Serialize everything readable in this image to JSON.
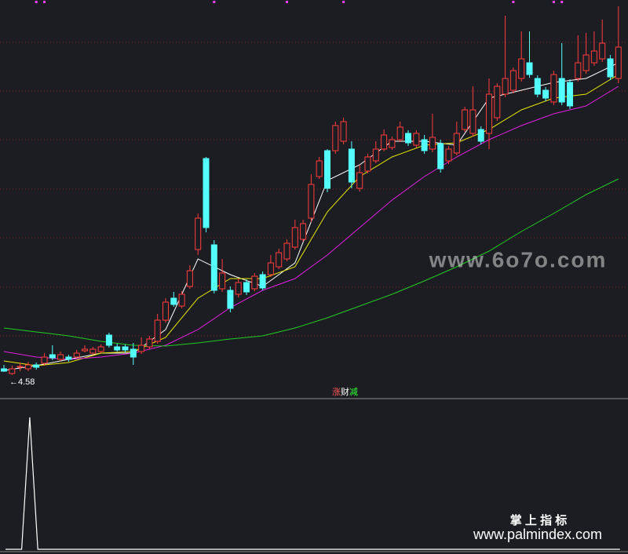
{
  "chart_data": {
    "type": "candlestick",
    "ylim": [
      4.31,
      9.36
    ],
    "yticks": [
      5.08,
      5.7,
      6.33,
      6.95,
      7.58,
      8.2,
      8.82
    ],
    "grid": true,
    "grid_color": "#7a1e1e",
    "up_color": "#ff3c3c",
    "down_color": "#54ffff",
    "candles": {
      "open": [
        4.66,
        4.6,
        4.68,
        4.66,
        4.71,
        4.73,
        4.84,
        4.78,
        4.81,
        4.81,
        4.89,
        4.86,
        4.88,
        5.09,
        4.94,
        4.94,
        4.91,
        4.88,
        4.94,
        5.01,
        5.28,
        5.56,
        5.46,
        5.71,
        6.18,
        7.34,
        6.24,
        5.68,
        5.66,
        5.61,
        5.76,
        5.68,
        5.86,
        5.86,
        5.96,
        6.06,
        6.21,
        6.31,
        6.58,
        7.11,
        7.44,
        7.44,
        7.56,
        7.46,
        6.96,
        7.18,
        7.31,
        7.46,
        7.48,
        7.58,
        7.66,
        7.51,
        7.58,
        7.46,
        7.53,
        7.31,
        7.41,
        7.71,
        7.66,
        7.71,
        7.66,
        7.86,
        8.16,
        8.21,
        8.36,
        8.56,
        8.36,
        8.21,
        8.06,
        8.36,
        8.31,
        8.36,
        8.46,
        8.56,
        8.61,
        8.61,
        8.36
      ],
      "high": [
        4.71,
        4.7,
        4.74,
        4.75,
        4.74,
        4.86,
        4.96,
        4.88,
        4.84,
        4.9,
        4.96,
        4.94,
        4.97,
        5.12,
        4.98,
        4.97,
        4.99,
        5.06,
        5.08,
        5.36,
        5.56,
        5.64,
        5.65,
        5.98,
        6.64,
        7.36,
        6.3,
        6.06,
        5.71,
        5.81,
        5.8,
        5.88,
        5.9,
        6.11,
        6.19,
        6.31,
        6.56,
        6.56,
        7.14,
        7.36,
        7.46,
        7.81,
        7.86,
        7.56,
        7.26,
        7.4,
        7.56,
        7.71,
        7.62,
        7.81,
        7.7,
        7.7,
        7.64,
        7.91,
        7.58,
        7.5,
        7.81,
        8.0,
        8.26,
        7.75,
        8.36,
        8.3,
        9.16,
        8.5,
        8.96,
        8.96,
        8.4,
        8.25,
        8.46,
        8.81,
        8.35,
        8.91,
        8.94,
        8.96,
        9.11,
        8.66,
        9.28
      ],
      "low": [
        4.62,
        4.58,
        4.63,
        4.63,
        4.65,
        4.7,
        4.77,
        4.76,
        4.75,
        4.79,
        4.87,
        4.84,
        4.86,
        4.93,
        4.88,
        4.87,
        4.71,
        4.85,
        4.91,
        4.98,
        5.25,
        5.45,
        5.43,
        5.68,
        6.11,
        6.4,
        5.62,
        5.64,
        5.38,
        5.57,
        5.6,
        5.65,
        5.66,
        5.83,
        5.93,
        6.03,
        6.18,
        6.28,
        6.53,
        7.08,
        6.91,
        7.4,
        7.52,
        6.96,
        6.92,
        7.15,
        7.28,
        7.43,
        7.45,
        7.55,
        7.5,
        7.48,
        7.4,
        7.42,
        7.16,
        7.27,
        7.38,
        7.68,
        7.62,
        7.52,
        7.46,
        7.82,
        8.12,
        8.17,
        8.32,
        8.37,
        8.12,
        8.07,
        8.02,
        8.02,
        7.97,
        8.32,
        8.42,
        8.52,
        8.57,
        8.34,
        8.3
      ],
      "close": [
        4.63,
        4.66,
        4.69,
        4.71,
        4.68,
        4.81,
        4.8,
        4.84,
        4.78,
        4.86,
        4.91,
        4.91,
        4.94,
        4.96,
        4.9,
        4.9,
        4.81,
        4.96,
        5.04,
        5.28,
        5.51,
        5.48,
        5.61,
        5.91,
        6.58,
        6.46,
        5.66,
        5.88,
        5.43,
        5.76,
        5.64,
        5.84,
        5.69,
        6.01,
        6.14,
        6.26,
        6.46,
        6.51,
        7.01,
        7.31,
        6.96,
        7.76,
        7.81,
        7.04,
        7.16,
        7.36,
        7.46,
        7.64,
        7.58,
        7.74,
        7.54,
        7.66,
        7.44,
        7.61,
        7.21,
        7.46,
        7.66,
        7.96,
        7.96,
        7.56,
        8.16,
        8.26,
        8.36,
        8.46,
        8.61,
        8.41,
        8.16,
        8.11,
        8.41,
        8.06,
        8.01,
        8.56,
        8.66,
        8.71,
        8.81,
        8.38,
        8.76
      ]
    },
    "lines": [
      {
        "color": "#ffffff",
        "x": [
          0,
          4,
          8,
          12,
          16,
          20,
          24,
          28,
          32,
          36,
          40,
          44,
          48,
          52,
          56,
          60,
          64,
          68,
          72,
          76
        ],
        "values": [
          4.64,
          4.7,
          4.78,
          4.86,
          4.86,
          5.16,
          6.06,
          5.86,
          5.71,
          6.01,
          7.06,
          7.26,
          7.56,
          7.56,
          7.51,
          8.11,
          8.21,
          8.31,
          8.36,
          8.56
        ]
      },
      {
        "color": "#e8e800",
        "x": [
          0,
          4,
          8,
          12,
          16,
          20,
          24,
          28,
          32,
          36,
          40,
          44,
          48,
          52,
          56,
          60,
          64,
          68,
          72,
          76
        ],
        "values": [
          4.76,
          4.7,
          4.74,
          4.86,
          4.88,
          5.06,
          5.56,
          5.81,
          5.81,
          5.96,
          6.66,
          7.11,
          7.36,
          7.51,
          7.54,
          7.71,
          7.96,
          8.11,
          8.16,
          8.41
        ]
      },
      {
        "color": "#e020e0",
        "x": [
          0,
          4,
          8,
          12,
          16,
          20,
          24,
          28,
          32,
          36,
          40,
          44,
          48,
          52,
          56,
          60,
          64,
          68,
          72,
          76
        ],
        "values": [
          4.88,
          4.81,
          4.78,
          4.81,
          4.86,
          4.96,
          5.16,
          5.44,
          5.66,
          5.81,
          6.11,
          6.46,
          6.81,
          7.11,
          7.36,
          7.58,
          7.76,
          7.91,
          8.01,
          8.26
        ]
      },
      {
        "color": "#22cc22",
        "x": [
          0,
          4,
          8,
          12,
          16,
          20,
          24,
          28,
          32,
          36,
          40,
          44,
          48,
          52,
          56,
          60,
          64,
          68,
          72,
          76
        ],
        "values": [
          5.18,
          5.13,
          5.08,
          5.01,
          4.96,
          4.95,
          4.99,
          5.04,
          5.08,
          5.18,
          5.31,
          5.46,
          5.61,
          5.78,
          5.96,
          6.16,
          6.41,
          6.64,
          6.88,
          7.08
        ]
      }
    ],
    "signals": {
      "color": "#ff44ff",
      "x": [
        4,
        5,
        26,
        35,
        42,
        63,
        68,
        69
      ]
    },
    "low_marker": {
      "value": 4.58,
      "label": "←4.58"
    },
    "indicator": {
      "title_parts": [
        "涨",
        "财",
        "减"
      ],
      "title_colors": [
        "#ff5a5a",
        "#ffffff",
        "#33ff33"
      ],
      "ylim": [
        0,
        1.1
      ],
      "color": "#ffffff",
      "values": [
        0,
        0,
        0,
        1,
        0,
        0,
        0,
        0,
        0,
        0,
        0,
        0,
        0,
        0,
        0,
        0,
        0,
        0,
        0,
        0,
        0,
        0,
        0,
        0,
        0,
        0,
        0,
        0,
        0,
        0,
        0,
        0,
        0,
        0,
        0,
        0,
        0,
        0,
        0,
        0,
        0,
        0,
        0,
        0,
        0,
        0,
        0,
        0,
        0,
        0,
        0,
        0,
        0,
        0,
        0,
        0,
        0,
        0,
        0,
        0,
        0,
        0,
        0,
        0,
        0,
        0,
        0,
        0,
        0,
        0,
        0,
        0,
        0,
        0,
        0,
        0,
        0
      ]
    }
  },
  "watermarks": [
    "www.6o7o.com",
    "掌 上 指 标",
    "www.palmindex.com"
  ]
}
